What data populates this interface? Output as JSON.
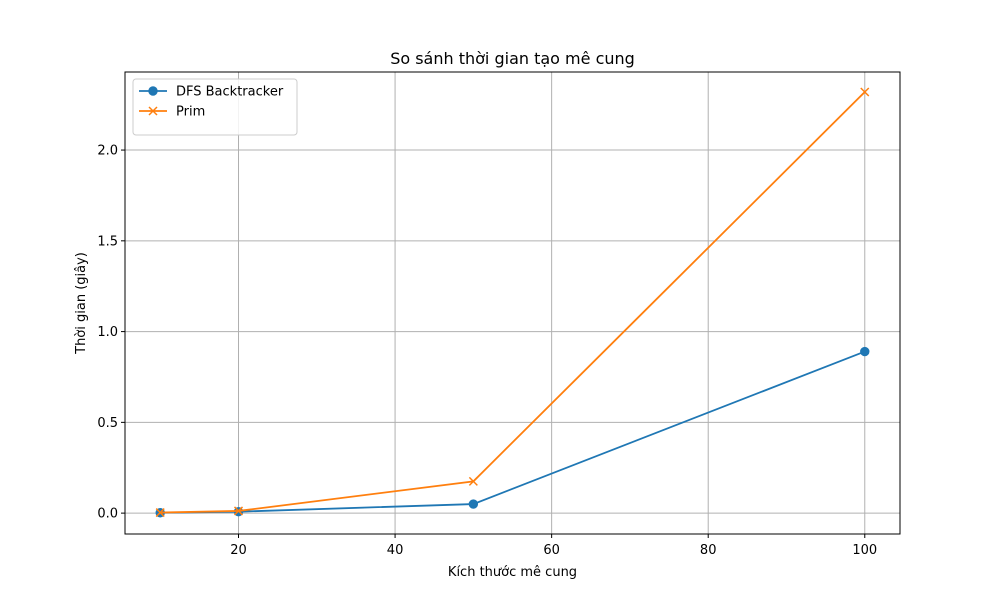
{
  "chart_data": {
    "type": "line",
    "title": "So sánh thời gian tạo mê cung",
    "xlabel": "Kích thước mê cung",
    "ylabel": "Thời gian (giây)",
    "xlim": [
      5.5,
      104.5
    ],
    "ylim": [
      -0.115,
      2.43
    ],
    "xticks": [
      20,
      40,
      60,
      80,
      100
    ],
    "yticks": [
      0.0,
      0.5,
      1.0,
      1.5,
      2.0
    ],
    "xtick_labels": [
      "20",
      "40",
      "60",
      "80",
      "100"
    ],
    "ytick_labels": [
      "0.0",
      "0.5",
      "1.0",
      "1.5",
      "2.0"
    ],
    "grid": true,
    "legend_position": "top-left",
    "x": [
      10,
      20,
      50,
      100
    ],
    "series": [
      {
        "name": "DFS Backtracker",
        "values": [
          0.002,
          0.008,
          0.05,
          0.89
        ],
        "color": "#1f77b4",
        "marker": "circle"
      },
      {
        "name": "Prim",
        "values": [
          0.003,
          0.012,
          0.175,
          2.32
        ],
        "color": "#ff7f0e",
        "marker": "x"
      }
    ]
  }
}
